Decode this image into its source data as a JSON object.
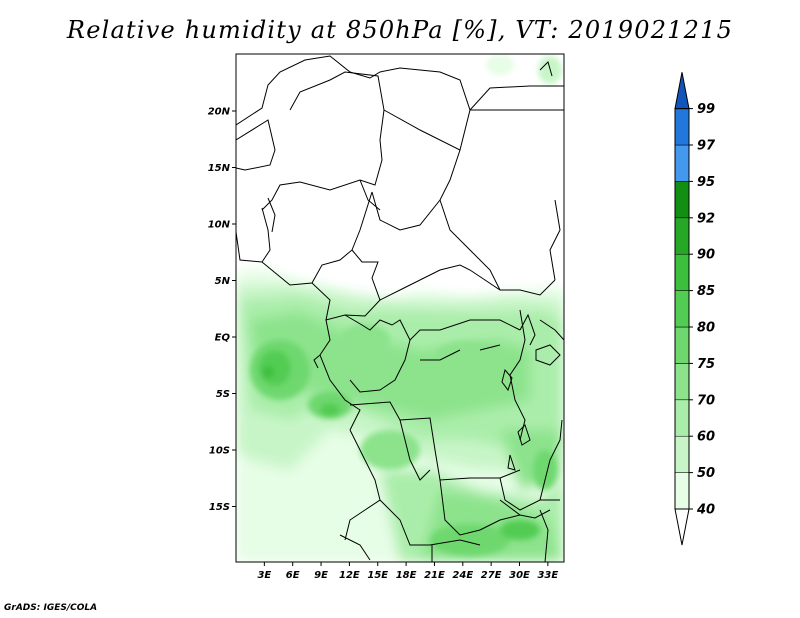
{
  "title": "Relative humidity at 850hPa [%], VT: 2019021215",
  "credit": "GrADS: IGES/COLA",
  "map": {
    "lat_labels": [
      {
        "value": 20,
        "label": "20N"
      },
      {
        "value": 15,
        "label": "15N"
      },
      {
        "value": 10,
        "label": "10N"
      },
      {
        "value": 5,
        "label": "5N"
      },
      {
        "value": 0,
        "label": "EQ"
      },
      {
        "value": -5,
        "label": "5S"
      },
      {
        "value": -10,
        "label": "10S"
      },
      {
        "value": -15,
        "label": "15S"
      }
    ],
    "lon_labels": [
      {
        "value": 3,
        "label": "3E"
      },
      {
        "value": 6,
        "label": "6E"
      },
      {
        "value": 9,
        "label": "9E"
      },
      {
        "value": 12,
        "label": "12E"
      },
      {
        "value": 15,
        "label": "15E"
      },
      {
        "value": 18,
        "label": "18E"
      },
      {
        "value": 21,
        "label": "21E"
      },
      {
        "value": 24,
        "label": "24E"
      },
      {
        "value": 27,
        "label": "27E"
      },
      {
        "value": 30,
        "label": "30E"
      },
      {
        "value": 33,
        "label": "33E"
      }
    ]
  },
  "colorbar": {
    "levels": [
      {
        "value": "40",
        "color": "#e6fde6"
      },
      {
        "value": "50",
        "color": "#c8f5c8"
      },
      {
        "value": "60",
        "color": "#aaedaa"
      },
      {
        "value": "70",
        "color": "#8ce38c"
      },
      {
        "value": "75",
        "color": "#6ed86e"
      },
      {
        "value": "80",
        "color": "#52cc52"
      },
      {
        "value": "85",
        "color": "#3cbf3c"
      },
      {
        "value": "90",
        "color": "#26a826"
      },
      {
        "value": "92",
        "color": "#128f12"
      },
      {
        "value": "95",
        "color": "#4499ee"
      },
      {
        "value": "97",
        "color": "#2277dd"
      },
      {
        "value": "99",
        "color": "#1155bb"
      }
    ],
    "bottom_color": "#ffffff",
    "top_color": "#1155bb"
  }
}
